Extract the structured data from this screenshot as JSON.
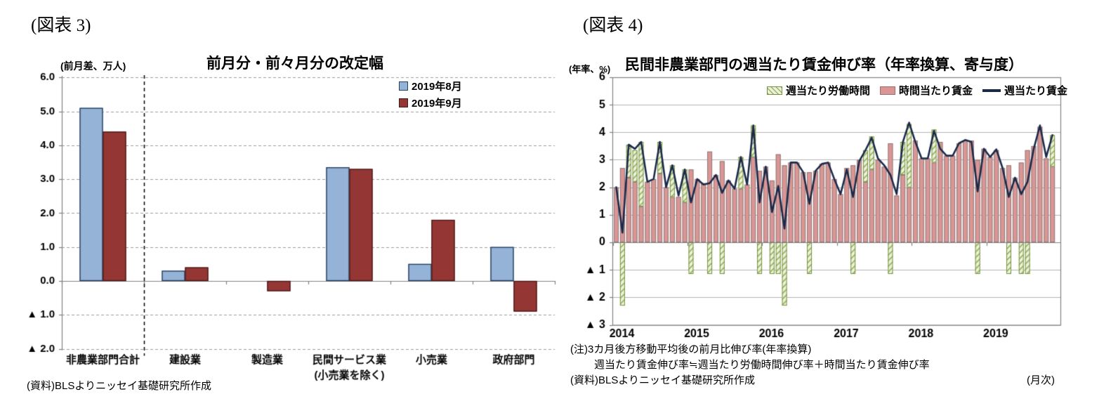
{
  "figure3": {
    "tag": "(図表 3)",
    "unit_label": "(前月差、万人)",
    "title": "前月分・前々月分の改定幅",
    "source": "(資料)BLSよりニッセイ基礎研究所作成"
  },
  "figure4": {
    "tag": "(図表 4)",
    "unit_label": "(年率、%)",
    "title": "民間非農業部門の週当たり賃金伸び率（年率換算、寄与度）",
    "note1": "(注)3カ月後方移動平均後の前月比伸び率(年率換算)",
    "note2": "週当たり賃金伸び率≒週当たり労働時間伸び率＋時間当たり賃金伸び率",
    "source": "(資料)BLSよりニッセイ基礎研究所作成",
    "frequency": "(月次)"
  },
  "chart_data": [
    {
      "id": "figure3",
      "type": "bar",
      "title": "前月分・前々月分の改定幅",
      "unit_label": "(前月差、万人)",
      "categories": [
        "非農業部門合計",
        "建設業",
        "製造業",
        "民間サービス業\n(小売業を除く)",
        "小売業",
        "政府部門"
      ],
      "series": [
        {
          "name": "2019年8月",
          "color": "#95b3d7",
          "border": "#243f60",
          "values": [
            5.1,
            0.3,
            0.0,
            3.35,
            0.5,
            1.0
          ]
        },
        {
          "name": "2019年9月",
          "color": "#943634",
          "border": "#4a1a19",
          "values": [
            4.4,
            0.4,
            -0.3,
            3.3,
            1.8,
            -0.9
          ]
        }
      ],
      "ylim": [
        -2,
        6
      ],
      "ytick_step": 1,
      "ytick_labels": [
        "6.0",
        "5.0",
        "4.0",
        "3.0",
        "2.0",
        "1.0",
        "0.0",
        "▲ 1.0",
        "▲ 2.0"
      ],
      "grid": "dashed",
      "legend_position": "top-right-inside",
      "separator_after_first_category": true
    },
    {
      "id": "figure4",
      "type": "stacked-bar-line",
      "title": "民間非農業部門の週当たり賃金伸び率（年率換算、寄与度）",
      "unit_label": "(年率、%)",
      "x_start": "2014-01",
      "x_end": "2019-11",
      "year_labels": [
        "2014",
        "2015",
        "2016",
        "2017",
        "2018",
        "2019"
      ],
      "ylim": [
        -3,
        6
      ],
      "ytick_step": 1,
      "ytick_labels": [
        "6",
        "5",
        "4",
        "3",
        "2",
        "1",
        "0",
        "▲ 1",
        "▲ 2",
        "▲ 3"
      ],
      "grid": "solid",
      "legend_position": "top-inside",
      "series": [
        {
          "name": "週当たり労働時間",
          "role": "bar-hours",
          "color": "#ecf1de",
          "hatch": "#9cb661",
          "border": "#76923c",
          "values": [
            0,
            -2.3,
            1.2,
            1.15,
            2.35,
            0,
            0,
            1.15,
            0,
            1.15,
            0,
            1.2,
            -1.15,
            0,
            0,
            -1.15,
            0,
            -1.15,
            0,
            0,
            1.15,
            0,
            1.15,
            -1.15,
            0,
            -1.15,
            -1.15,
            -2.3,
            0,
            0,
            0,
            -1.15,
            0,
            0,
            0,
            0,
            0,
            0,
            -1.15,
            0,
            1.15,
            1.2,
            0,
            0,
            -1.15,
            0,
            1.2,
            2.3,
            0,
            0,
            0,
            1.2,
            0,
            0,
            0,
            0,
            0,
            0,
            -1.15,
            0,
            0,
            0,
            0,
            -1.15,
            0,
            -1.15,
            -1.15,
            0,
            0,
            0,
            1.15
          ]
        },
        {
          "name": "時間当たり賃金",
          "role": "bar-hourly-wage",
          "color": "#d99694",
          "border": "#8e7b7b",
          "values": [
            2.0,
            2.7,
            2.35,
            2.2,
            1.3,
            2.2,
            2.3,
            2.5,
            2.0,
            1.65,
            1.65,
            1.45,
            2.65,
            2.3,
            2.15,
            3.3,
            2.45,
            2.95,
            2.25,
            1.95,
            1.95,
            2.1,
            3.1,
            2.6,
            2.75,
            2.25,
            3.2,
            2.8,
            2.9,
            2.9,
            2.55,
            2.55,
            2.6,
            2.85,
            2.9,
            2.3,
            1.75,
            2.7,
            2.8,
            3.0,
            2.2,
            2.65,
            3.0,
            2.75,
            3.6,
            1.7,
            2.45,
            2.0,
            3.7,
            3.05,
            3.05,
            2.9,
            3.65,
            3.15,
            3.15,
            3.6,
            3.7,
            3.7,
            3.0,
            3.4,
            3.1,
            3.35,
            2.7,
            2.8,
            2.35,
            2.9,
            3.35,
            3.5,
            4.2,
            3.05,
            2.75
          ]
        },
        {
          "name": "週当たり賃金",
          "role": "line-weekly-wage",
          "color": "#1b2a4a",
          "values": [
            2.0,
            0.35,
            3.55,
            3.4,
            3.65,
            2.2,
            2.3,
            3.65,
            2.0,
            2.8,
            1.7,
            2.65,
            1.45,
            2.3,
            2.1,
            2.15,
            2.45,
            1.8,
            2.25,
            1.95,
            3.1,
            2.1,
            4.25,
            1.45,
            2.75,
            1.1,
            2.05,
            0.5,
            2.9,
            2.9,
            2.55,
            1.4,
            2.6,
            2.85,
            2.9,
            2.3,
            1.75,
            2.65,
            1.65,
            2.95,
            3.35,
            3.8,
            3.05,
            2.8,
            2.45,
            1.75,
            3.65,
            4.35,
            3.65,
            3.05,
            3.05,
            4.05,
            3.4,
            3.15,
            3.15,
            3.6,
            3.72,
            3.65,
            1.85,
            3.4,
            3.1,
            3.38,
            2.7,
            1.65,
            2.35,
            1.75,
            2.2,
            3.4,
            4.25,
            3.1,
            3.9
          ]
        }
      ]
    }
  ]
}
